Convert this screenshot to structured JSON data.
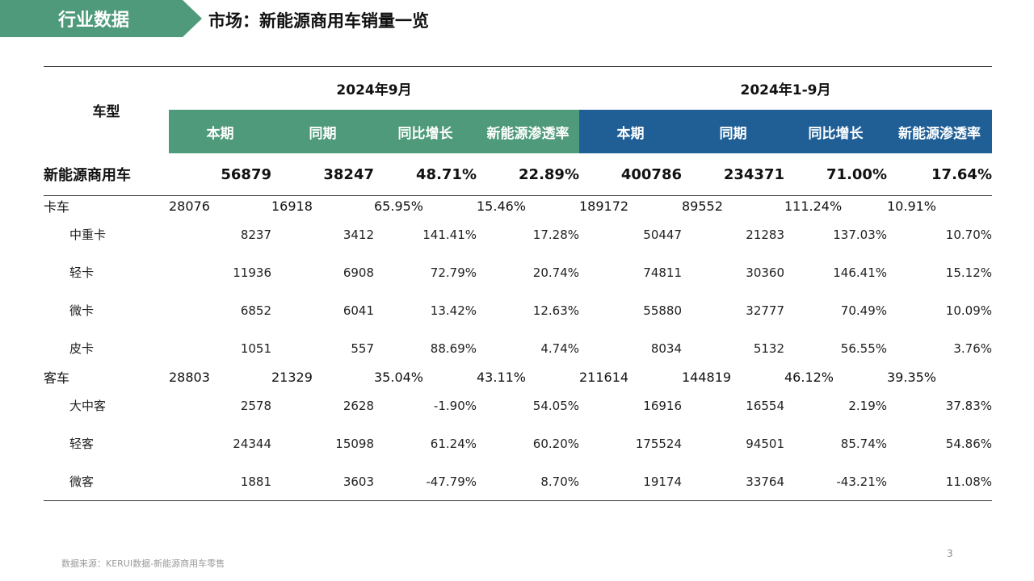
{
  "header": {
    "tag": "行业数据",
    "title": "市场：新能源商用车销量一览"
  },
  "table": {
    "row_header": "车型",
    "periods": [
      "2024年9月",
      "2024年1-9月"
    ],
    "sub_headers": [
      "本期",
      "同期",
      "同比增长",
      "新能源渗透率"
    ],
    "colors": {
      "green": "#4e9a7a",
      "blue": "#1f5f96",
      "category_bg": "#e6f2ec",
      "negative": "#e0282a"
    },
    "rows": [
      {
        "label": "新能源商用车",
        "kind": "total",
        "values": [
          "56879",
          "38247",
          "48.71%",
          "22.89%",
          "400786",
          "234371",
          "71.00%",
          "17.64%"
        ]
      },
      {
        "label": "卡车",
        "kind": "category",
        "values": [
          "28076",
          "16918",
          "65.95%",
          "15.46%",
          "189172",
          "89552",
          "111.24%",
          "10.91%"
        ]
      },
      {
        "label": "中重卡",
        "kind": "item",
        "values": [
          "8237",
          "3412",
          "141.41%",
          "17.28%",
          "50447",
          "21283",
          "137.03%",
          "10.70%"
        ]
      },
      {
        "label": "轻卡",
        "kind": "item",
        "values": [
          "11936",
          "6908",
          "72.79%",
          "20.74%",
          "74811",
          "30360",
          "146.41%",
          "15.12%"
        ]
      },
      {
        "label": "微卡",
        "kind": "item",
        "values": [
          "6852",
          "6041",
          "13.42%",
          "12.63%",
          "55880",
          "32777",
          "70.49%",
          "10.09%"
        ]
      },
      {
        "label": "皮卡",
        "kind": "item",
        "values": [
          "1051",
          "557",
          "88.69%",
          "4.74%",
          "8034",
          "5132",
          "56.55%",
          "3.76%"
        ]
      },
      {
        "label": "客车",
        "kind": "category",
        "values": [
          "28803",
          "21329",
          "35.04%",
          "43.11%",
          "211614",
          "144819",
          "46.12%",
          "39.35%"
        ]
      },
      {
        "label": "大中客",
        "kind": "item",
        "values": [
          "2578",
          "2628",
          "-1.90%",
          "54.05%",
          "16916",
          "16554",
          "2.19%",
          "37.83%"
        ]
      },
      {
        "label": "轻客",
        "kind": "item",
        "values": [
          "24344",
          "15098",
          "61.24%",
          "60.20%",
          "175524",
          "94501",
          "85.74%",
          "54.86%"
        ]
      },
      {
        "label": "微客",
        "kind": "item",
        "values": [
          "1881",
          "3603",
          "-47.79%",
          "8.70%",
          "19174",
          "33764",
          "-43.21%",
          "11.08%"
        ]
      }
    ]
  },
  "footer": {
    "source": "数据来源：KERUI数据-新能源商用车零售",
    "page_number": "3"
  }
}
